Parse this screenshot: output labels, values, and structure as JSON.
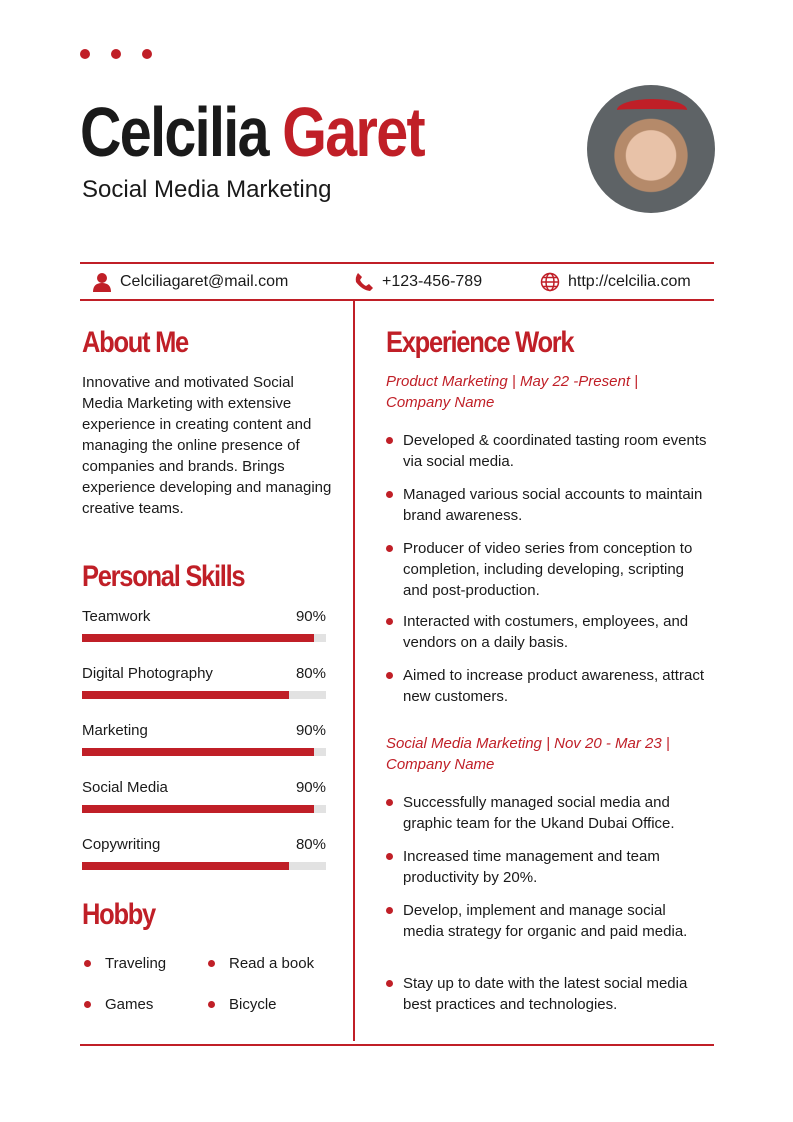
{
  "header": {
    "first_name": "Celcilia",
    "last_name": "Garet",
    "role": "Social Media Marketing"
  },
  "contact": {
    "email": "Celciliagaret@mail.com",
    "phone": "+123-456-789",
    "website": "http://celcilia.com"
  },
  "about": {
    "title": "About Me",
    "text": "Innovative and motivated Social Media Marketing with extensive experience in creating content and managing the online presence of companies and brands. Brings experience developing and managing creative teams."
  },
  "skills": {
    "title": "Personal Skills",
    "items": [
      {
        "name": "Teamwork",
        "label": "90%",
        "value": 90
      },
      {
        "name": "Digital Photography",
        "label": "80%",
        "value": 80
      },
      {
        "name": "Marketing",
        "label": "90%",
        "value": 90
      },
      {
        "name": "Social Media",
        "label": "90%",
        "value": 90
      },
      {
        "name": "Copywriting",
        "label": "80%",
        "value": 80
      }
    ]
  },
  "hobby": {
    "title": "Hobby",
    "items": [
      "Traveling",
      "Read a book",
      "Games",
      "Bicycle"
    ]
  },
  "experience": {
    "title": "Experience Work",
    "jobs": [
      {
        "heading": "Product Marketing | May 22 -Present | Company Name",
        "bullets": [
          "Developed & coordinated tasting room events via social media.",
          "Managed various social accounts to maintain brand awareness.",
          "Producer of video series from conception to completion, including developing, scripting and post-production.",
          "Interacted with costumers, employees, and vendors on a daily basis.",
          "Aimed to increase product awareness, attract new customers."
        ]
      },
      {
        "heading": "Social Media Marketing | Nov 20 - Mar 23 | Company Name",
        "bullets": [
          "Successfully managed social media and graphic team for the Ukand Dubai Office.",
          "Increased time management and team productivity by 20%.",
          "Develop, implement and manage social media strategy for organic and paid media.",
          "Stay up to date with the latest social media best practices and technologies."
        ]
      }
    ]
  },
  "colors": {
    "accent": "#c01f27",
    "track": "#e2e2e2"
  }
}
